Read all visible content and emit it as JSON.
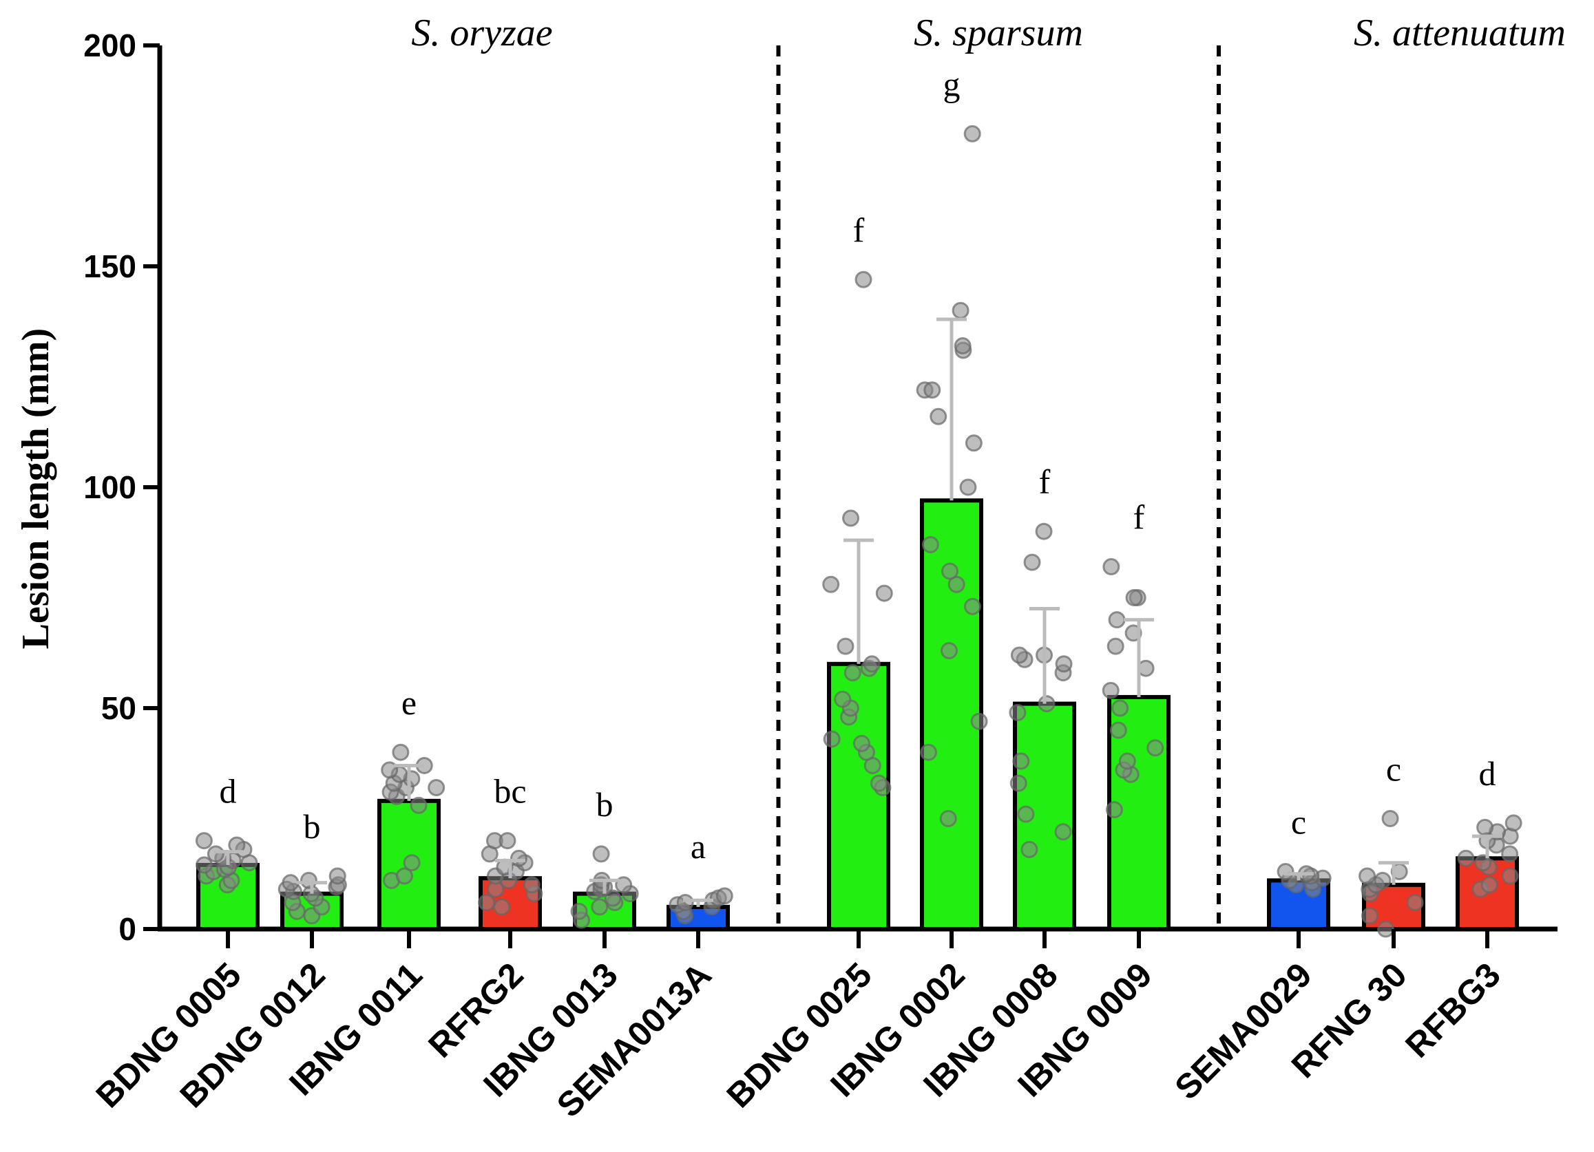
{
  "chart_data": {
    "type": "bar",
    "ylabel": "Lesion length (mm)",
    "ylim": [
      0,
      200
    ],
    "yticks": [
      0,
      50,
      100,
      150,
      200
    ],
    "ytick_labels": [
      "0",
      "50",
      "100",
      "150",
      "200"
    ],
    "groups": [
      {
        "title": "S. oryzae",
        "start": 0,
        "end": 5
      },
      {
        "title": "S. sparsum",
        "start": 6,
        "end": 9
      },
      {
        "title": "S. attenuatum",
        "start": 10,
        "end": 12
      }
    ],
    "bars": [
      {
        "category": "BDNG 0005",
        "value": 14.5,
        "error": 3,
        "letter": "d",
        "color": "#22ee11",
        "points": [
          10,
          11,
          12,
          13,
          13.5,
          14,
          14.5,
          15,
          15.5,
          16,
          17,
          18,
          19,
          20
        ]
      },
      {
        "category": "BDNG 0012",
        "value": 8,
        "error": 2.5,
        "letter": "b",
        "color": "#22ee11",
        "points": [
          3,
          4,
          5,
          6,
          7,
          8,
          8.5,
          9,
          9.5,
          10,
          10.5,
          11,
          12
        ]
      },
      {
        "category": "IBNG 0011",
        "value": 29,
        "error": 8,
        "letter": "e",
        "color": "#22ee11",
        "points": [
          11,
          12,
          15,
          28,
          30,
          31,
          32,
          32,
          33,
          34,
          35,
          36,
          37,
          40
        ]
      },
      {
        "category": "RFRG2",
        "value": 11.5,
        "error": 4,
        "letter": "bc",
        "color": "#ee3322",
        "points": [
          5,
          6,
          8,
          9,
          10,
          11,
          12,
          13,
          14,
          15,
          16,
          17,
          20,
          20
        ]
      },
      {
        "category": "IBNG 0013",
        "value": 8,
        "error": 3,
        "letter": "b",
        "color": "#22ee11",
        "points": [
          2,
          4,
          5,
          6,
          7,
          8,
          8.5,
          9,
          9.5,
          10,
          10,
          11,
          17
        ]
      },
      {
        "category": "SEMA0013A",
        "value": 5,
        "error": 1.5,
        "letter": "a",
        "color": "#1155ee",
        "points": [
          3,
          4,
          5,
          5.5,
          6,
          6.5,
          7,
          7.5
        ]
      },
      {
        "category": "BDNG 0025",
        "value": 60,
        "error": 28,
        "letter": "f",
        "color": "#22ee11",
        "points": [
          32,
          33,
          37,
          40,
          42,
          43,
          48,
          50,
          52,
          58,
          59,
          60,
          64,
          76,
          78,
          93,
          147
        ]
      },
      {
        "category": "IBNG 0002",
        "value": 97,
        "error": 41,
        "letter": "g",
        "color": "#22ee11",
        "points": [
          25,
          40,
          47,
          63,
          73,
          78,
          81,
          87,
          100,
          110,
          116,
          122,
          122,
          131,
          132,
          140,
          180
        ]
      },
      {
        "category": "IBNG 0008",
        "value": 51,
        "error": 21.5,
        "letter": "f",
        "color": "#22ee11",
        "points": [
          18,
          22,
          26,
          33,
          38,
          49,
          51,
          58,
          60,
          61,
          62,
          62,
          83,
          90
        ]
      },
      {
        "category": "IBNG 0009",
        "value": 52.5,
        "error": 17.5,
        "letter": "f",
        "color": "#22ee11",
        "points": [
          27,
          35,
          36,
          38,
          41,
          45,
          50,
          54,
          59,
          64,
          67,
          70,
          75,
          75,
          82
        ]
      },
      {
        "category": "SEMA0029",
        "value": 11,
        "error": 1.5,
        "letter": "c",
        "color": "#1155ee",
        "points": [
          9,
          10,
          10.5,
          11,
          11.5,
          12,
          12.5,
          13
        ]
      },
      {
        "category": "RFNG 30",
        "value": 10,
        "error": 5,
        "letter": "c",
        "color": "#ee3322",
        "points": [
          0,
          3,
          6,
          8,
          9,
          10,
          11,
          12,
          13,
          25
        ]
      },
      {
        "category": "RFBG3",
        "value": 16,
        "error": 5,
        "letter": "d",
        "color": "#ee3322",
        "points": [
          9,
          10,
          12,
          14,
          15,
          16,
          17,
          19,
          20,
          21,
          22,
          23,
          24
        ]
      }
    ]
  }
}
